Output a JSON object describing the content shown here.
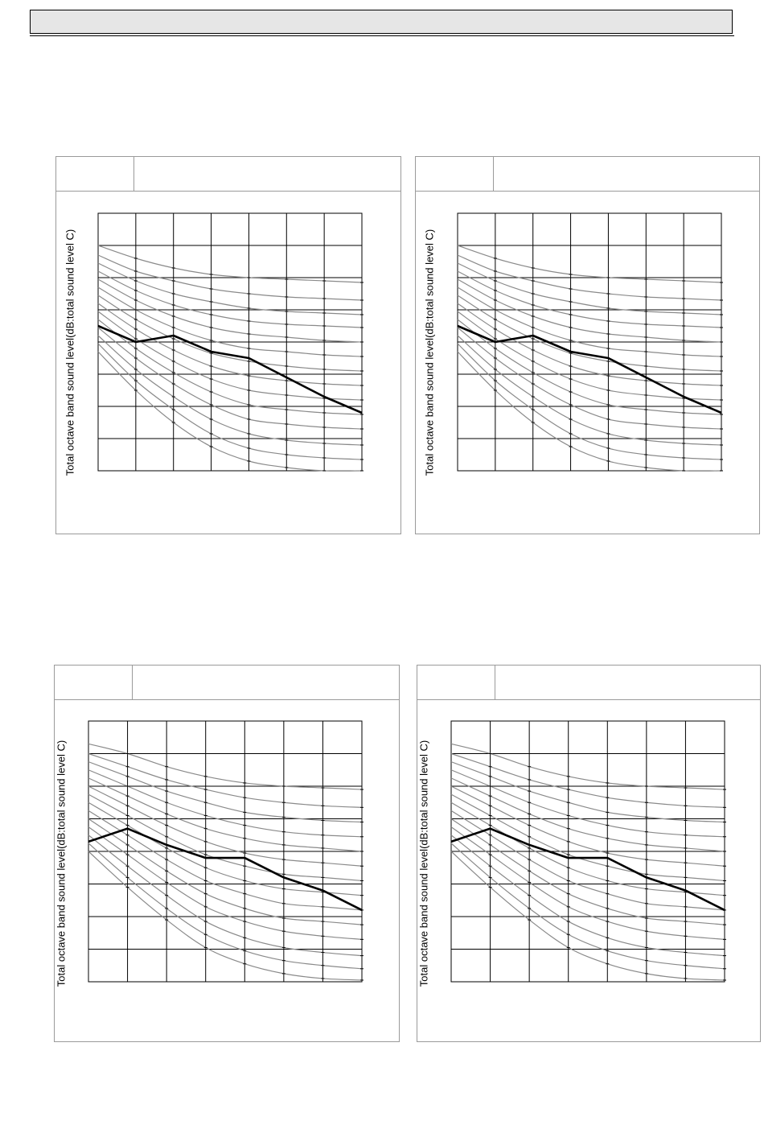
{
  "chart_data": [
    {
      "type": "line",
      "ylabel": "Total octave band sound level(dB:total sound level C)",
      "x": [
        0,
        1,
        2,
        3,
        4,
        5,
        6,
        7
      ],
      "xlim": [
        0,
        7
      ],
      "ylim": [
        0,
        8
      ],
      "grid": true,
      "nc_curves": [
        [
          7.0,
          6.6,
          6.3,
          6.1,
          6.0,
          5.95,
          5.9,
          5.85
        ],
        [
          6.7,
          6.2,
          5.9,
          5.65,
          5.5,
          5.4,
          5.35,
          5.3
        ],
        [
          6.45,
          5.9,
          5.5,
          5.25,
          5.05,
          4.95,
          4.9,
          4.85
        ],
        [
          6.2,
          5.6,
          5.15,
          4.85,
          4.65,
          4.55,
          4.5,
          4.45
        ],
        [
          5.95,
          5.3,
          4.8,
          4.45,
          4.25,
          4.15,
          4.05,
          4.0
        ],
        [
          5.7,
          5.0,
          4.45,
          4.05,
          3.8,
          3.7,
          3.6,
          3.55
        ],
        [
          5.45,
          4.7,
          4.1,
          3.65,
          3.4,
          3.25,
          3.15,
          3.1
        ],
        [
          5.2,
          4.4,
          3.75,
          3.25,
          2.95,
          2.8,
          2.7,
          2.65
        ],
        [
          4.95,
          4.1,
          3.4,
          2.85,
          2.5,
          2.35,
          2.25,
          2.2
        ],
        [
          4.7,
          3.8,
          3.05,
          2.45,
          2.05,
          1.9,
          1.8,
          1.75
        ],
        [
          4.45,
          3.5,
          2.7,
          2.05,
          1.6,
          1.45,
          1.35,
          1.3
        ],
        [
          4.2,
          3.15,
          2.3,
          1.6,
          1.15,
          0.95,
          0.85,
          0.8
        ],
        [
          3.95,
          2.8,
          1.9,
          1.15,
          0.7,
          0.5,
          0.4,
          0.35
        ],
        [
          3.7,
          2.5,
          1.5,
          0.75,
          0.3,
          0.1,
          0.0,
          0.0
        ]
      ],
      "series": [
        {
          "values": [
            4.5,
            4.0,
            4.2,
            3.7,
            3.5,
            2.9,
            2.3,
            1.8
          ]
        }
      ]
    },
    {
      "type": "line",
      "ylabel": "Total octave band sound level(dB:total sound level C)",
      "x": [
        0,
        1,
        2,
        3,
        4,
        5,
        6,
        7
      ],
      "xlim": [
        0,
        7
      ],
      "ylim": [
        0,
        8
      ],
      "grid": true,
      "nc_curves": [
        [
          7.0,
          6.6,
          6.3,
          6.1,
          6.0,
          5.95,
          5.9,
          5.85
        ],
        [
          6.7,
          6.2,
          5.9,
          5.65,
          5.5,
          5.4,
          5.35,
          5.3
        ],
        [
          6.45,
          5.9,
          5.5,
          5.25,
          5.05,
          4.95,
          4.9,
          4.85
        ],
        [
          6.2,
          5.6,
          5.15,
          4.85,
          4.65,
          4.55,
          4.5,
          4.45
        ],
        [
          5.95,
          5.3,
          4.8,
          4.45,
          4.25,
          4.15,
          4.05,
          4.0
        ],
        [
          5.7,
          5.0,
          4.45,
          4.05,
          3.8,
          3.7,
          3.6,
          3.55
        ],
        [
          5.45,
          4.7,
          4.1,
          3.65,
          3.4,
          3.25,
          3.15,
          3.1
        ],
        [
          5.2,
          4.4,
          3.75,
          3.25,
          2.95,
          2.8,
          2.7,
          2.65
        ],
        [
          4.95,
          4.1,
          3.4,
          2.85,
          2.5,
          2.35,
          2.25,
          2.2
        ],
        [
          4.7,
          3.8,
          3.05,
          2.45,
          2.05,
          1.9,
          1.8,
          1.75
        ],
        [
          4.45,
          3.5,
          2.7,
          2.05,
          1.6,
          1.45,
          1.35,
          1.3
        ],
        [
          4.2,
          3.15,
          2.3,
          1.6,
          1.15,
          0.95,
          0.85,
          0.8
        ],
        [
          3.95,
          2.8,
          1.9,
          1.15,
          0.7,
          0.5,
          0.4,
          0.35
        ],
        [
          3.7,
          2.5,
          1.5,
          0.75,
          0.3,
          0.1,
          0.0,
          0.0
        ]
      ],
      "series": [
        {
          "values": [
            4.5,
            4.0,
            4.2,
            3.7,
            3.5,
            2.9,
            2.3,
            1.8
          ]
        }
      ]
    },
    {
      "type": "line",
      "ylabel": "Total octave band sound level(dB:total sound level C)",
      "x": [
        0,
        1,
        2,
        3,
        4,
        5,
        6,
        7
      ],
      "xlim": [
        0,
        7
      ],
      "ylim": [
        0,
        8
      ],
      "grid": true,
      "nc_curves": [
        [
          7.3,
          7.0,
          6.6,
          6.3,
          6.1,
          6.0,
          5.95,
          5.9
        ],
        [
          7.0,
          6.6,
          6.2,
          5.9,
          5.65,
          5.5,
          5.4,
          5.35
        ],
        [
          6.75,
          6.3,
          5.85,
          5.5,
          5.2,
          5.05,
          4.95,
          4.9
        ],
        [
          6.5,
          6.0,
          5.5,
          5.1,
          4.8,
          4.6,
          4.5,
          4.45
        ],
        [
          6.25,
          5.7,
          5.15,
          4.7,
          4.4,
          4.2,
          4.1,
          4.0
        ],
        [
          6.0,
          5.4,
          4.8,
          4.3,
          3.95,
          3.75,
          3.65,
          3.55
        ],
        [
          5.75,
          5.1,
          4.45,
          3.9,
          3.55,
          3.3,
          3.2,
          3.1
        ],
        [
          5.5,
          4.8,
          4.1,
          3.5,
          3.1,
          2.85,
          2.75,
          2.65
        ],
        [
          5.25,
          4.5,
          3.75,
          3.1,
          2.7,
          2.4,
          2.3,
          2.2
        ],
        [
          5.0,
          4.2,
          3.4,
          2.7,
          2.25,
          1.95,
          1.85,
          1.75
        ],
        [
          4.75,
          3.9,
          3.05,
          2.3,
          1.85,
          1.55,
          1.4,
          1.3
        ],
        [
          4.5,
          3.55,
          2.65,
          1.85,
          1.35,
          1.05,
          0.9,
          0.8
        ],
        [
          4.25,
          3.2,
          2.25,
          1.45,
          0.95,
          0.65,
          0.5,
          0.4
        ],
        [
          4.0,
          2.9,
          1.9,
          1.05,
          0.55,
          0.25,
          0.1,
          0.05
        ]
      ],
      "series": [
        {
          "values": [
            4.3,
            4.7,
            4.2,
            3.8,
            3.8,
            3.2,
            2.8,
            2.2
          ]
        }
      ]
    },
    {
      "type": "line",
      "ylabel": "Total octave band sound level(dB:total sound level C)",
      "x": [
        0,
        1,
        2,
        3,
        4,
        5,
        6,
        7
      ],
      "xlim": [
        0,
        7
      ],
      "ylim": [
        0,
        8
      ],
      "grid": true,
      "nc_curves": [
        [
          7.3,
          7.0,
          6.6,
          6.3,
          6.1,
          6.0,
          5.95,
          5.9
        ],
        [
          7.0,
          6.6,
          6.2,
          5.9,
          5.65,
          5.5,
          5.4,
          5.35
        ],
        [
          6.75,
          6.3,
          5.85,
          5.5,
          5.2,
          5.05,
          4.95,
          4.9
        ],
        [
          6.5,
          6.0,
          5.5,
          5.1,
          4.8,
          4.6,
          4.5,
          4.45
        ],
        [
          6.25,
          5.7,
          5.15,
          4.7,
          4.4,
          4.2,
          4.1,
          4.0
        ],
        [
          6.0,
          5.4,
          4.8,
          4.3,
          3.95,
          3.75,
          3.65,
          3.55
        ],
        [
          5.75,
          5.1,
          4.45,
          3.9,
          3.55,
          3.3,
          3.2,
          3.1
        ],
        [
          5.5,
          4.8,
          4.1,
          3.5,
          3.1,
          2.85,
          2.75,
          2.65
        ],
        [
          5.25,
          4.5,
          3.75,
          3.1,
          2.7,
          2.4,
          2.3,
          2.2
        ],
        [
          5.0,
          4.2,
          3.4,
          2.7,
          2.25,
          1.95,
          1.85,
          1.75
        ],
        [
          4.75,
          3.9,
          3.05,
          2.3,
          1.85,
          1.55,
          1.4,
          1.3
        ],
        [
          4.5,
          3.55,
          2.65,
          1.85,
          1.35,
          1.05,
          0.9,
          0.8
        ],
        [
          4.25,
          3.2,
          2.25,
          1.45,
          0.95,
          0.65,
          0.5,
          0.4
        ],
        [
          4.0,
          2.9,
          1.9,
          1.05,
          0.55,
          0.25,
          0.1,
          0.05
        ]
      ],
      "series": [
        {
          "values": [
            4.3,
            4.7,
            4.2,
            3.8,
            3.8,
            3.2,
            2.8,
            2.2
          ]
        }
      ]
    }
  ]
}
